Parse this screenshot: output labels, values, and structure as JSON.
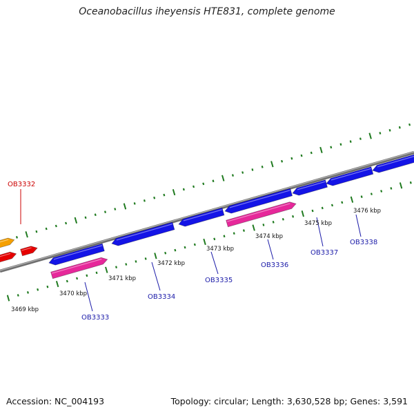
{
  "title": "Oceanobacillus iheyensis HTE831, complete genome",
  "accession": "Accession: NC_004193",
  "summary": "Topology: circular; Length: 3,630,528 bp; Genes: 3,591",
  "colors": {
    "backbone": "#8a8a8a",
    "ticks": "#1f7a1f",
    "cds_blue": "#1414e6",
    "cds_pink": "#e6289a",
    "cds_orange": "#f5a000",
    "cds_red": "#e60000",
    "label_blue": "#1a1aa8",
    "label_red": "#cc0000"
  },
  "kbp_labels": [
    "3469 kbp",
    "3470 kbp",
    "3471 kbp",
    "3472 kbp",
    "3473 kbp",
    "3474 kbp",
    "3475 kbp",
    "3476 kbp"
  ],
  "gene_labels": [
    {
      "id": "ob3332",
      "text": "OB3332",
      "color": "red"
    },
    {
      "id": "ob3333",
      "text": "OB3333",
      "color": "blue"
    },
    {
      "id": "ob3334",
      "text": "OB3334",
      "color": "blue"
    },
    {
      "id": "ob3335",
      "text": "OB3335",
      "color": "blue"
    },
    {
      "id": "ob3336",
      "text": "OB3336",
      "color": "blue"
    },
    {
      "id": "ob3337",
      "text": "OB3337",
      "color": "blue"
    },
    {
      "id": "ob3338",
      "text": "OB3338",
      "color": "blue"
    }
  ]
}
